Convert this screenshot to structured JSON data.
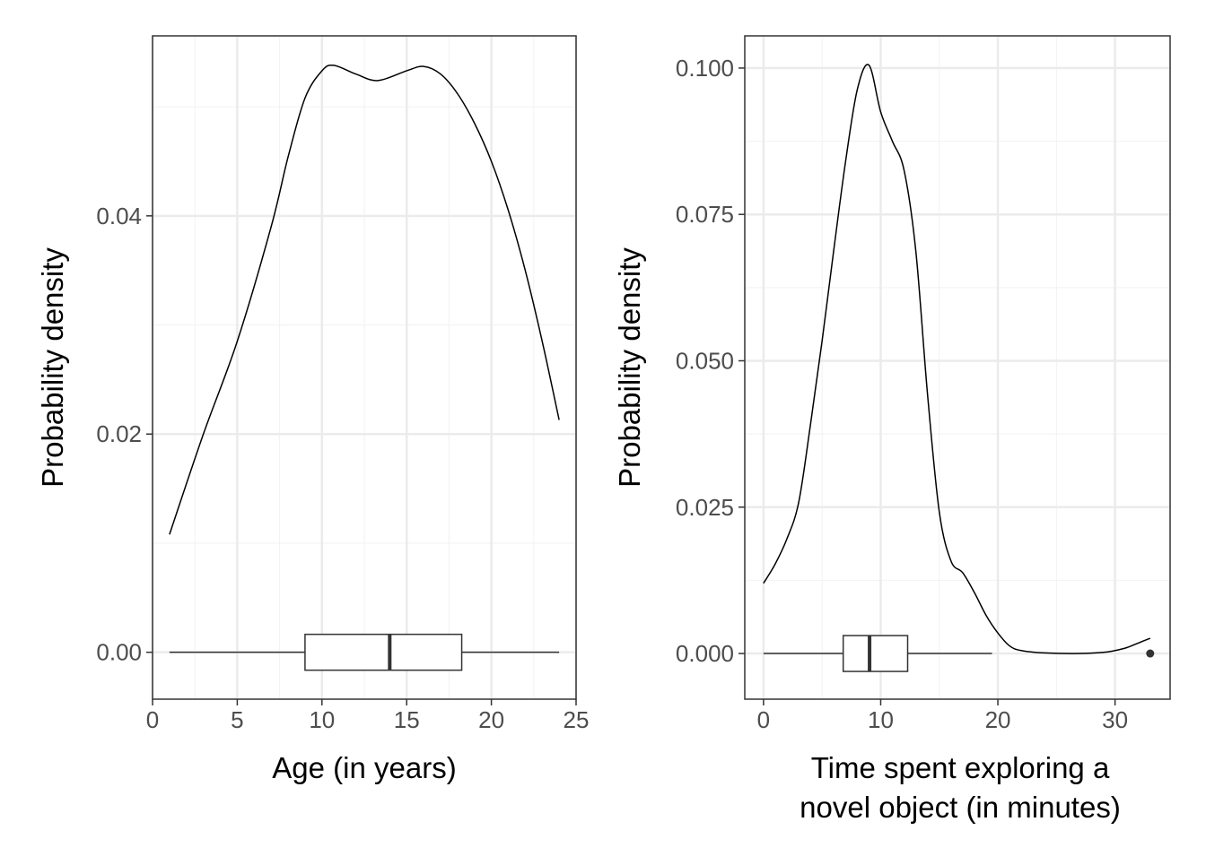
{
  "chart_data": [
    {
      "type": "line",
      "title": "",
      "xlabel": "Age (in years)",
      "ylabel": "Probability density",
      "xlim": [
        0,
        25
      ],
      "ylim": [
        -0.0043,
        0.0565
      ],
      "xticks": [
        0,
        5,
        10,
        15,
        20,
        25
      ],
      "xtick_labels": [
        "0",
        "5",
        "10",
        "15",
        "20",
        "25"
      ],
      "yticks": [
        0,
        0.02,
        0.04
      ],
      "ytick_labels": [
        "0.00",
        "0.02",
        "0.04"
      ],
      "grid": true,
      "density": {
        "x": [
          1,
          3,
          5,
          7,
          8,
          9,
          10,
          10.7,
          12,
          13.3,
          15,
          16,
          17,
          18,
          19,
          20,
          21,
          22,
          23,
          24
        ],
        "y": [
          0.0108,
          0.02,
          0.0285,
          0.039,
          0.0454,
          0.0508,
          0.0533,
          0.0538,
          0.053,
          0.0524,
          0.0533,
          0.0537,
          0.053,
          0.0512,
          0.0485,
          0.045,
          0.0405,
          0.035,
          0.0285,
          0.0213
        ]
      },
      "boxplot": {
        "min": 1,
        "q1": 9,
        "median": 14,
        "q3": 18.25,
        "max": 24,
        "outliers": []
      }
    },
    {
      "type": "line",
      "title": "",
      "xlabel": "Time spent exploring a\nnovel object (in minutes)",
      "xlabel_lines": [
        "Time spent exploring a",
        "novel object (in minutes)"
      ],
      "ylabel": "Probability density",
      "xlim": [
        -1.6,
        34.7
      ],
      "ylim": [
        -0.0078,
        0.1055
      ],
      "xticks": [
        0,
        10,
        20,
        30
      ],
      "xtick_labels": [
        "0",
        "10",
        "20",
        "30"
      ],
      "yticks": [
        0,
        0.025,
        0.05,
        0.075,
        0.1
      ],
      "ytick_labels": [
        "0.000",
        "0.025",
        "0.050",
        "0.075",
        "0.100"
      ],
      "grid": true,
      "density": {
        "x": [
          0,
          1,
          2,
          3,
          4,
          5,
          6,
          7,
          8,
          9,
          10,
          11,
          12,
          13,
          14,
          15,
          16,
          17,
          18,
          19,
          20,
          21,
          22,
          24,
          27,
          29,
          30,
          31,
          32,
          33
        ],
        "y": [
          0.012,
          0.0153,
          0.0196,
          0.0258,
          0.039,
          0.0534,
          0.069,
          0.084,
          0.0963,
          0.1005,
          0.0925,
          0.0875,
          0.0825,
          0.0687,
          0.0442,
          0.0242,
          0.0158,
          0.0138,
          0.0104,
          0.0065,
          0.0035,
          0.0013,
          0.0005,
          0.0001,
          0.0,
          0.0002,
          0.0005,
          0.001,
          0.0018,
          0.0026
        ]
      },
      "boxplot": {
        "min": 0,
        "q1": 6.8,
        "median": 9.05,
        "q3": 12.3,
        "max": 19.5,
        "outliers": [
          33
        ]
      }
    }
  ]
}
